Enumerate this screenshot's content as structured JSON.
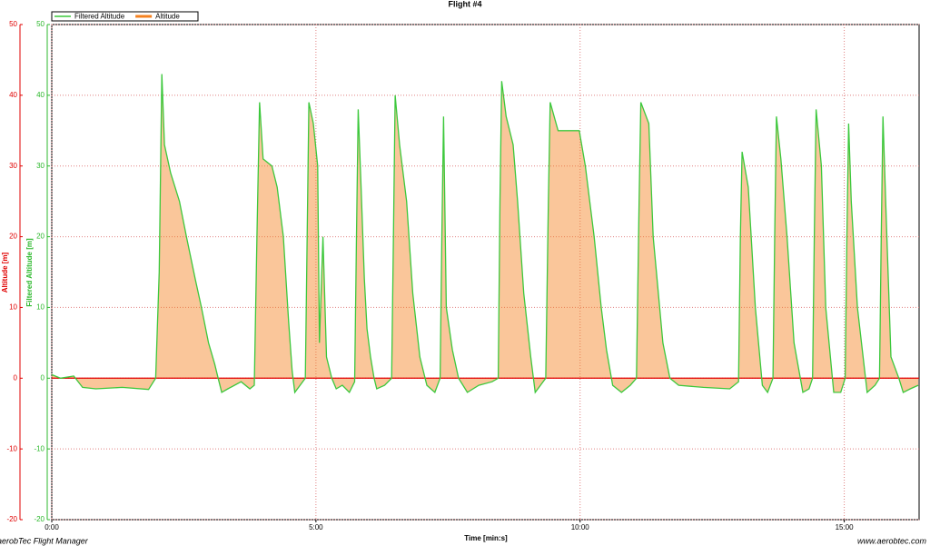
{
  "chart_data": {
    "type": "area-line",
    "title": "Flight #4",
    "xlabel": "Time [min:s]",
    "ylabel": "Altitude [m]",
    "y2label": "Filtered Altitude [m]",
    "footer_left": "aerobTec Flight Manager",
    "footer_right": "www.aerobtec.com",
    "xlim": [
      0,
      985
    ],
    "xticks": [
      {
        "value": 0,
        "label": "0:00"
      },
      {
        "value": 300,
        "label": "5:00"
      },
      {
        "value": 600,
        "label": "10:00"
      },
      {
        "value": 900,
        "label": "15:00"
      }
    ],
    "ylim": [
      -20,
      50
    ],
    "yticks": [
      -20,
      -10,
      0,
      10,
      20,
      30,
      40,
      50
    ],
    "y2lim": [
      -20,
      50
    ],
    "y2ticks": [
      -20,
      -10,
      0,
      10,
      20,
      30,
      40,
      50
    ],
    "grid": true,
    "legend": "top-left",
    "x": [
      0,
      10,
      25,
      35,
      50,
      80,
      110,
      118,
      122,
      125,
      128,
      135,
      145,
      153,
      163,
      170,
      178,
      185,
      189,
      193,
      200,
      215,
      225,
      230,
      233,
      236,
      240,
      250,
      256,
      263,
      269,
      273,
      276,
      282,
      288,
      290,
      292,
      297,
      302,
      304,
      308,
      312,
      318,
      323,
      330,
      338,
      344,
      346,
      348,
      351,
      355,
      358,
      362,
      366,
      369,
      378,
      386,
      388,
      390,
      395,
      403,
      410,
      418,
      426,
      435,
      441,
      443,
      445,
      448,
      455,
      462,
      472,
      485,
      500,
      507,
      509,
      511,
      516,
      524,
      529,
      536,
      544,
      549,
      555,
      561,
      564,
      566,
      575,
      590,
      599,
      606,
      616,
      624,
      630,
      637,
      647,
      657,
      664,
      667,
      669,
      678,
      683,
      694,
      702,
      712,
      740,
      770,
      780,
      782,
      784,
      791,
      799,
      807,
      813,
      819,
      821,
      823,
      828,
      835,
      843,
      853,
      860,
      864,
      866,
      868,
      874,
      879,
      888,
      896,
      901,
      903,
      905,
      908,
      915,
      926,
      935,
      940,
      942,
      944,
      947,
      953,
      962,
      967,
      975,
      984
    ],
    "series": [
      {
        "name": "Filtered Altitude",
        "color": "#3cc83c",
        "axis": "y2",
        "values": [
          0.5,
          0,
          0.3,
          -1.3,
          -1.5,
          -1.3,
          -1.6,
          0,
          15,
          43,
          33,
          29,
          25,
          20,
          14,
          10,
          5,
          2,
          0,
          -2,
          -1.5,
          -0.5,
          -1.5,
          -1,
          20,
          39,
          31,
          30,
          27,
          20,
          8,
          1,
          -2,
          -1,
          0,
          20,
          39,
          36,
          30,
          5,
          20,
          3,
          0,
          -1.5,
          -1,
          -2,
          -0.5,
          20,
          38,
          28,
          14,
          7,
          3,
          0,
          -1.5,
          -1,
          0,
          20,
          40,
          33,
          25,
          12,
          3,
          -1,
          -2,
          0,
          20,
          37,
          10,
          4,
          0,
          -2,
          -1,
          -0.5,
          0,
          25,
          42,
          37,
          33,
          25,
          12,
          3,
          -2,
          -1,
          0,
          25,
          39,
          35,
          35,
          35,
          30,
          20,
          10,
          4,
          -1,
          -2,
          -1,
          0,
          25,
          39,
          36,
          20,
          5,
          0,
          -1,
          -1.3,
          -1.5,
          -0.5,
          20,
          32,
          27,
          10,
          -1,
          -2,
          0,
          20,
          37,
          31,
          20,
          5,
          -2,
          -1.5,
          0,
          20,
          38,
          30,
          10,
          -2,
          -2,
          0,
          20,
          36,
          25,
          10,
          -2,
          -1,
          0,
          20,
          37,
          25,
          3,
          0,
          -2,
          -1.5,
          -1
        ]
      },
      {
        "name": "Altitude",
        "color": "#f5811f",
        "values": [
          0.5,
          0,
          0.3,
          -1.3,
          -1.5,
          -1.3,
          -1.6,
          0,
          15,
          43,
          33,
          29,
          25,
          20,
          14,
          10,
          5,
          2,
          0,
          -2,
          -1.5,
          -0.5,
          -1.5,
          -1,
          20,
          39,
          31,
          30,
          27,
          20,
          8,
          1,
          -2,
          -1,
          0,
          20,
          39,
          36,
          30,
          5,
          20,
          3,
          0,
          -1.5,
          -1,
          -2,
          -0.5,
          20,
          38,
          28,
          14,
          7,
          3,
          0,
          -1.5,
          -1,
          0,
          20,
          40,
          33,
          25,
          12,
          3,
          -1,
          -2,
          0,
          20,
          37,
          10,
          4,
          0,
          -2,
          -1,
          -0.5,
          0,
          25,
          42,
          37,
          33,
          25,
          12,
          3,
          -2,
          -1,
          0,
          25,
          39,
          35,
          35,
          35,
          30,
          20,
          10,
          4,
          -1,
          -2,
          -1,
          0,
          25,
          39,
          36,
          20,
          5,
          0,
          -1,
          -1.3,
          -1.5,
          -0.5,
          20,
          32,
          27,
          10,
          -1,
          -2,
          0,
          20,
          37,
          31,
          20,
          5,
          -2,
          -1.5,
          0,
          20,
          38,
          30,
          10,
          -2,
          -2,
          0,
          20,
          36,
          25,
          10,
          -2,
          -1,
          0,
          20,
          37,
          25,
          3,
          0,
          -2,
          -1.5,
          -1
        ]
      }
    ]
  }
}
